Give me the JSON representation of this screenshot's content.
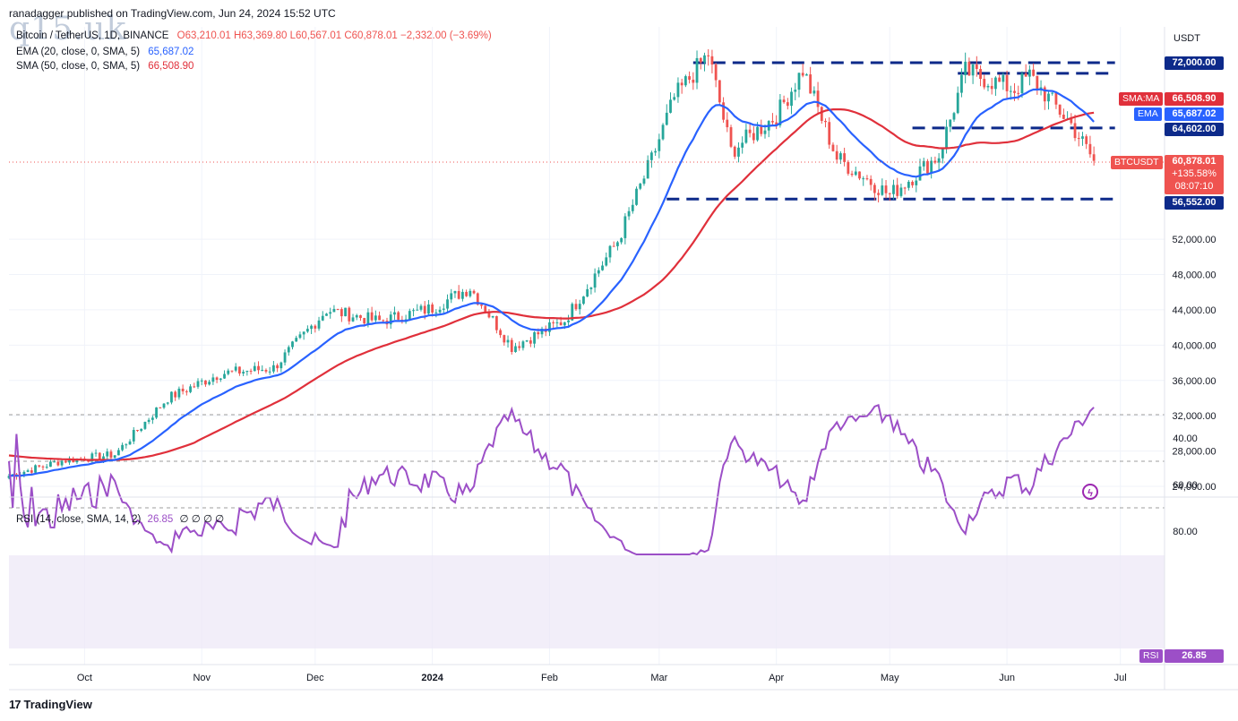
{
  "header": {
    "published": "ranadagger published on TradingView.com, Jun 24, 2024 15:52 UTC",
    "watermark": "q15.uk"
  },
  "legend": {
    "symbol": "Bitcoin / TetherUS, 1D, BINANCE",
    "ohlc": "O63,210.01 H63,369.80 L60,567.01 C60,878.01 −2,332.00 (−3.69%)",
    "ema_label": "EMA (20, close, 0, SMA, 5)",
    "ema_value": "65,687.02",
    "sma_label": "SMA (50, close, 0, SMA, 5)",
    "sma_value": "66,508.90"
  },
  "price_axis": {
    "currency": "USDT",
    "ticks": [
      "72,000.00",
      "64,602.00",
      "52,000.00",
      "48,000.00",
      "44,000.00",
      "40,000.00",
      "36,000.00",
      "32,000.00",
      "28,000.00",
      "24,000.00"
    ]
  },
  "labels": {
    "sma_tag": "SMA:MA",
    "sma_price": "66,508.90",
    "ema_tag": "EMA",
    "ema_price": "65,687.02",
    "last_tag": "BTCUSDT",
    "last_price": "60,878.01",
    "last_change": "+135.58%",
    "countdown": "08:07:10",
    "level_72000": "72,000.00",
    "level_64602": "64,602.00",
    "level_56552": "56,552.00"
  },
  "rsi": {
    "legend": "RSI (14, close, SMA, 14, 2)",
    "legend_value": "26.85",
    "legend_zeros": "∅ ∅ ∅ ∅",
    "ticks": [
      "80.00",
      "60.00",
      "40.00"
    ],
    "tag": "RSI",
    "tag_value": "26.85"
  },
  "time_axis": {
    "labels": [
      "Oct",
      "Nov",
      "Dec",
      "2024",
      "Feb",
      "Mar",
      "Apr",
      "May",
      "Jun",
      "Jul"
    ]
  },
  "brand": "TradingView",
  "colors": {
    "up": "#26a69a",
    "down": "#ef5350",
    "ema": "#2962ff",
    "sma": "#e0303b",
    "rsi": "#9c4fc7",
    "levels": "#0d2a8a"
  },
  "chart_data": {
    "type": "candlestick",
    "title": "Bitcoin / TetherUS, 1D, BINANCE",
    "y_unit": "USDT",
    "x_range": [
      "2023-09",
      "2024-07"
    ],
    "ylim": [
      23000,
      76000
    ],
    "horizontal_levels": [
      72000,
      64602,
      56552
    ],
    "last_close": 60878.01,
    "close_series": {
      "name": "BTCUSDT",
      "x": [
        "2023-09-11",
        "2023-09-25",
        "2023-10-09",
        "2023-10-23",
        "2023-11-06",
        "2023-11-20",
        "2023-12-04",
        "2023-12-18",
        "2024-01-01",
        "2024-01-11",
        "2024-01-22",
        "2024-02-05",
        "2024-02-19",
        "2024-02-28",
        "2024-03-05",
        "2024-03-14",
        "2024-03-20",
        "2024-04-01",
        "2024-04-08",
        "2024-04-17",
        "2024-05-01",
        "2024-05-14",
        "2024-05-21",
        "2024-06-03",
        "2024-06-07",
        "2024-06-18",
        "2024-06-24"
      ],
      "values": [
        25200,
        26900,
        27600,
        34000,
        36800,
        37400,
        44000,
        42700,
        44200,
        46500,
        39800,
        42800,
        51800,
        61000,
        68000,
        73000,
        62000,
        66000,
        71200,
        61200,
        57000,
        61500,
        71000,
        69000,
        70500,
        65000,
        60878
      ]
    },
    "ema20": {
      "name": "EMA (20, close, 0, SMA, 5)",
      "last": 65687.02
    },
    "sma50": {
      "name": "SMA (50, close, 0, SMA, 5)",
      "last": 66508.9
    },
    "rsi_series": {
      "name": "RSI (14, close, SMA, 14, 2)",
      "ylim": [
        20,
        95
      ],
      "bands": [
        70,
        30
      ],
      "last": 26.85
    }
  }
}
